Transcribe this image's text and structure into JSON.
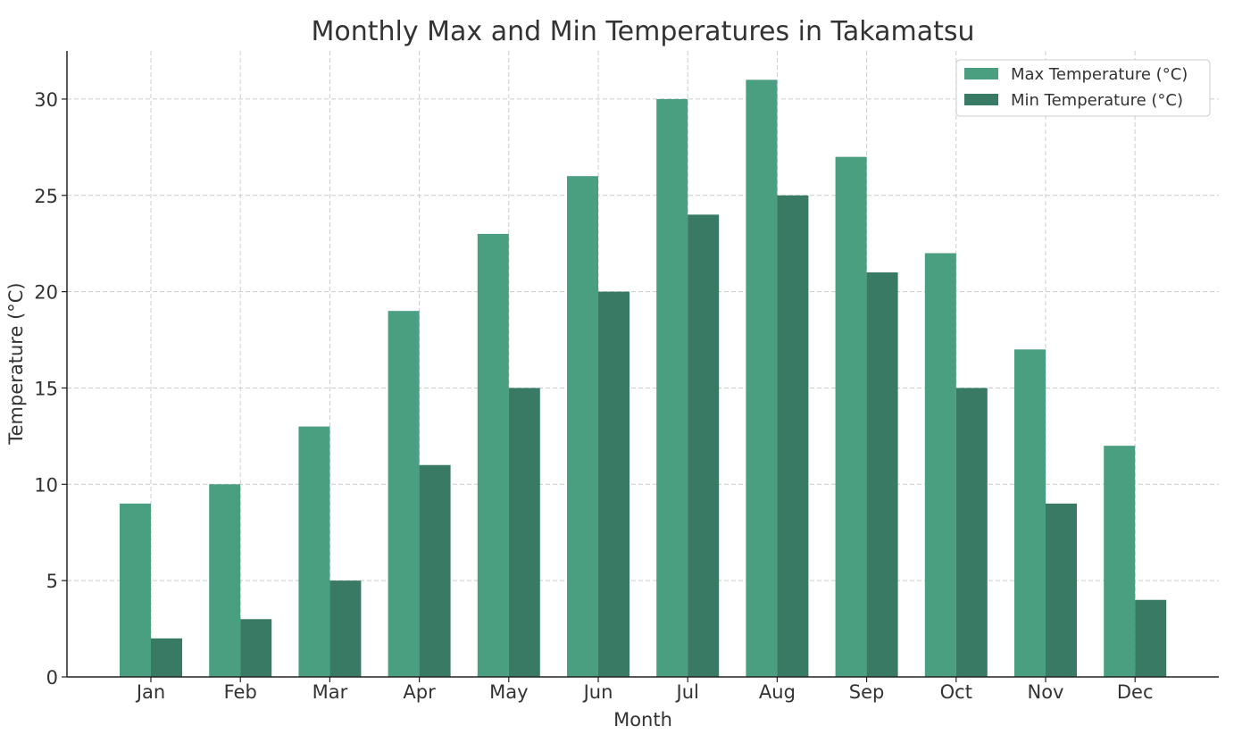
{
  "chart_data": {
    "type": "bar",
    "title": "Monthly Max and Min Temperatures in Takamatsu",
    "xlabel": "Month",
    "ylabel": "Temperature (°C)",
    "categories": [
      "Jan",
      "Feb",
      "Mar",
      "Apr",
      "May",
      "Jun",
      "Jul",
      "Aug",
      "Sep",
      "Oct",
      "Nov",
      "Dec"
    ],
    "series": [
      {
        "name": "Max Temperature (°C)",
        "color": "#4a9f80",
        "values": [
          9,
          10,
          13,
          19,
          23,
          26,
          30,
          31,
          27,
          22,
          17,
          12
        ]
      },
      {
        "name": "Min Temperature (°C)",
        "color": "#387a63",
        "values": [
          2,
          3,
          5,
          11,
          15,
          20,
          24,
          25,
          21,
          15,
          9,
          4
        ]
      }
    ],
    "ylim": [
      0,
      32.5
    ],
    "yticks": [
      0,
      5,
      10,
      15,
      20,
      25,
      30
    ],
    "grid": true,
    "legend": "top-right"
  }
}
